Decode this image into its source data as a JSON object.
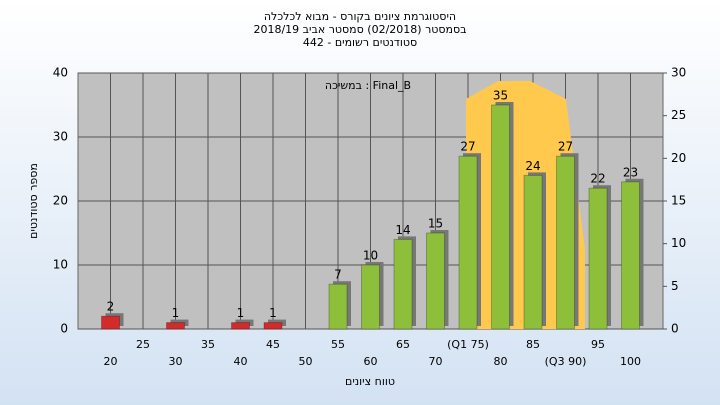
{
  "chart_data": {
    "type": "bar",
    "title": [
      "היסטוגרמת ציונים בקורס - מבוא לכלכלה",
      "בסמסטר (02/2018) סמסטר אביב 2018/19",
      "442 - סטודנטים רשומים"
    ],
    "annotation": "במשיכה : Final_B",
    "x_label": "טווח ציונים",
    "y_label": "מספר סטודנטים",
    "categories": [
      "20",
      "25",
      "30",
      "35",
      "40",
      "45",
      "50",
      "55",
      "60",
      "65",
      "70",
      "(Q1 75)",
      "80",
      "85",
      "(Q3 90)",
      "95",
      "100"
    ],
    "values": [
      2,
      0,
      1,
      0,
      1,
      1,
      0,
      7,
      10,
      14,
      15,
      27,
      35,
      24,
      27,
      22,
      23
    ],
    "colors": [
      "#d42a2a",
      "#d42a2a",
      "#d42a2a",
      "#d42a2a",
      "#d42a2a",
      "#d42a2a",
      "#d42a2a",
      "#8dbf3a",
      "#8dbf3a",
      "#8dbf3a",
      "#8dbf3a",
      "#8dbf3a",
      "#8dbf3a",
      "#8dbf3a",
      "#8dbf3a",
      "#8dbf3a",
      "#8dbf3a"
    ],
    "ylim": [
      0,
      40
    ],
    "yticks": [
      0,
      10,
      20,
      30,
      40
    ],
    "y2lim": [
      0,
      30
    ],
    "y2ticks": [
      0,
      5,
      10,
      15,
      20,
      25,
      30
    ],
    "grid": true
  }
}
